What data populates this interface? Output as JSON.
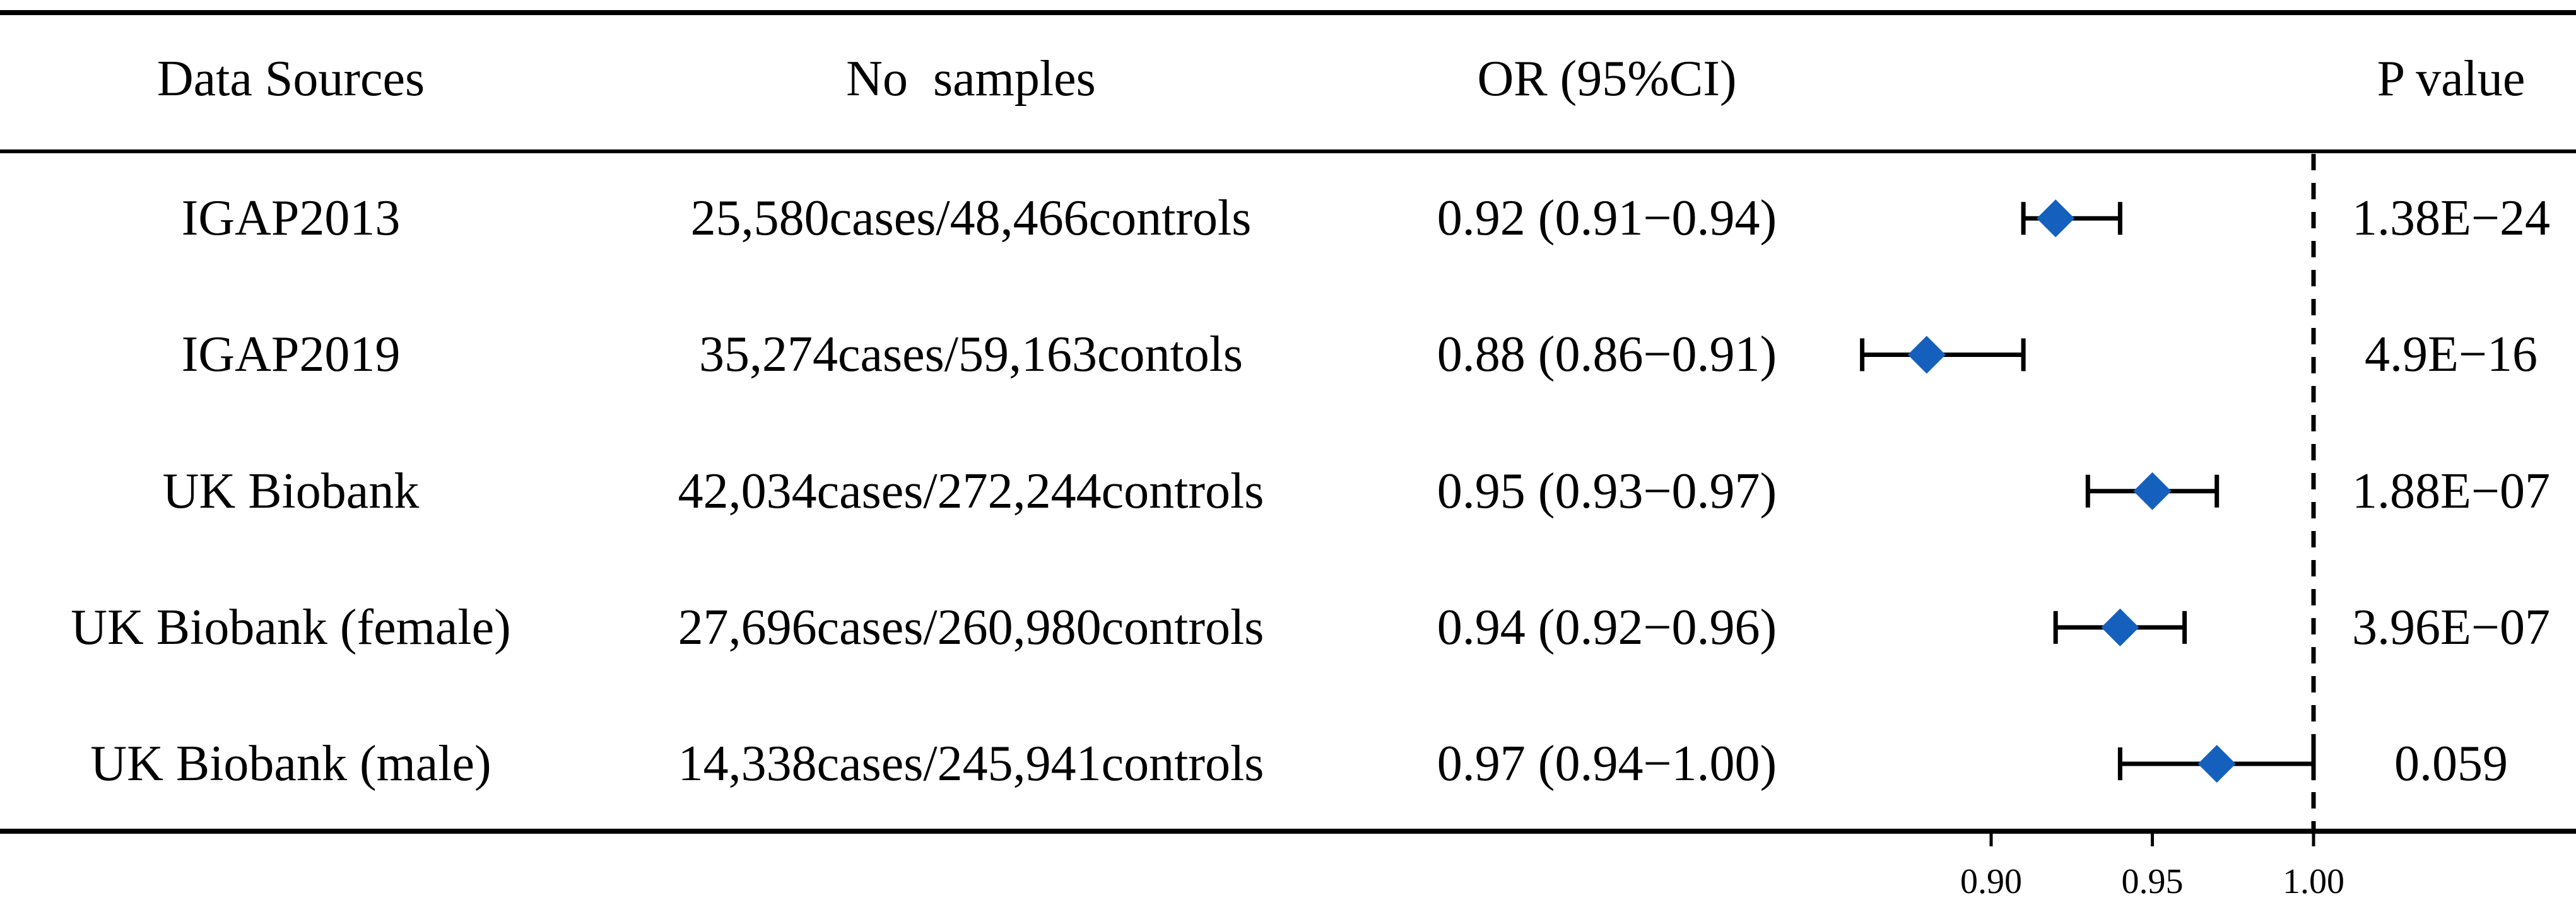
{
  "table": {
    "headers": {
      "source": "Data Sources",
      "samples": "No  samples",
      "or_ci": "OR (95%CI)",
      "p_value": "P value"
    },
    "rows": [
      {
        "samples": "25,580cases/48,466controls",
        "or_ci": "0.92 (0.91−0.94)",
        "p_value": "1.38E−24"
      },
      {
        "samples": "35,274cases/59,163contols",
        "or_ci": "0.88 (0.86−0.91)",
        "p_value": "4.9E−16"
      },
      {
        "samples": "42,034cases/272,244controls",
        "or_ci": "0.95 (0.93−0.97)",
        "p_value": "1.88E−07"
      },
      {
        "samples": "27,696cases/260,980controls",
        "or_ci": "0.94 (0.92−0.96)",
        "p_value": "3.96E−07"
      },
      {
        "samples": "14,338cases/245,941controls",
        "or_ci": "0.97 (0.94−1.00)",
        "p_value": "0.059"
      }
    ]
  },
  "colors": {
    "marker": "#1560BD",
    "lines": "#000000",
    "background": "#FFFFFF"
  },
  "chart_data": {
    "type": "scatter",
    "categories": [
      "IGAP2013",
      "IGAP2019",
      "UK Biobank",
      "UK Biobank (female)",
      "UK Biobank (male)"
    ],
    "values": [
      0.92,
      0.88,
      0.95,
      0.94,
      0.97
    ],
    "ci_low": [
      0.91,
      0.86,
      0.93,
      0.92,
      0.94
    ],
    "ci_high": [
      0.94,
      0.91,
      0.97,
      0.96,
      1.0
    ],
    "reference_line": 1.0,
    "xlim": [
      0.86,
      1.0
    ],
    "xticks": [
      0.9,
      0.95,
      1.0
    ],
    "xtick_labels": [
      "0.90",
      "0.95",
      "1.00"
    ],
    "title": "",
    "xlabel": "",
    "ylabel": "",
    "grid": false
  }
}
